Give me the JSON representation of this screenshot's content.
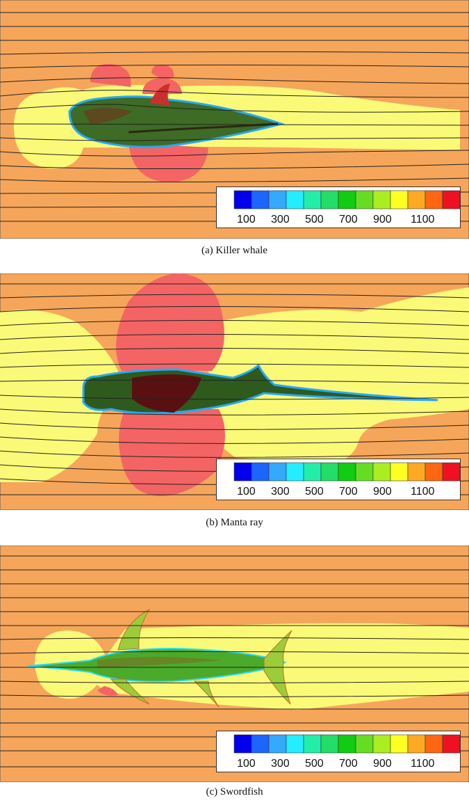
{
  "panels": [
    {
      "id": "a",
      "caption": "(a)  Killer whale"
    },
    {
      "id": "b",
      "caption": "(b)  Manta ray"
    },
    {
      "id": "c",
      "caption": "(c)  Swordfish"
    }
  ],
  "colorbar": {
    "colors": [
      "#0000ee",
      "#1a66ff",
      "#33aaff",
      "#22eeff",
      "#22eeaa",
      "#22dd66",
      "#11cc11",
      "#66dd22",
      "#aaee22",
      "#ffff22",
      "#ffaa22",
      "#ff6611",
      "#ee1122"
    ],
    "tick_labels": [
      "100",
      "300",
      "500",
      "700",
      "900",
      "1100"
    ]
  },
  "colors": {
    "background": "#f6a65a",
    "yellow": "#fafa78",
    "red": "#f46464",
    "streamline": "#222222"
  }
}
